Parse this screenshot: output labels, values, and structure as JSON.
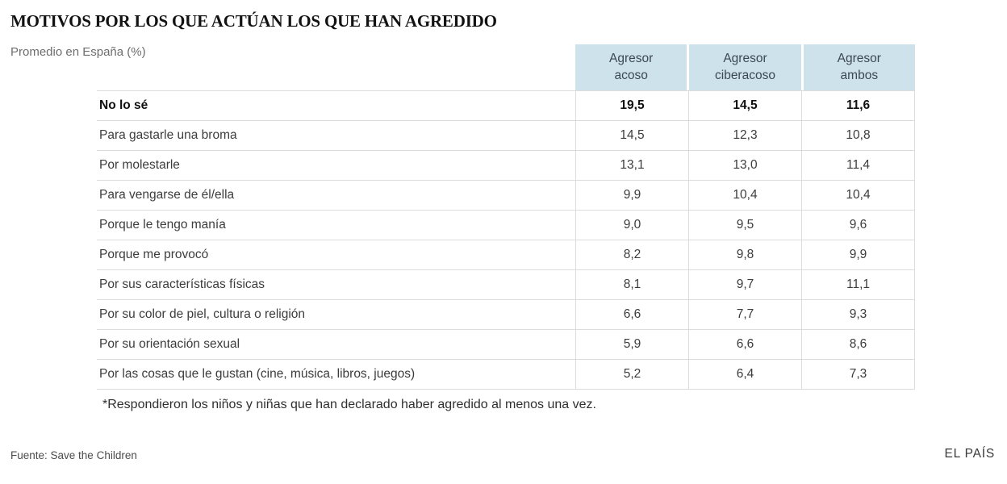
{
  "title": "MOTIVOS POR LOS QUE ACTÚAN LOS QUE HAN AGREDIDO",
  "subtitle": "Promedio en España (%)",
  "table": {
    "columns": [
      "Agresor\nacoso",
      "Agresor\nciberacoso",
      "Agresor\nambos"
    ],
    "rows": [
      {
        "label": "No lo sé",
        "values": [
          "19,5",
          "14,5",
          "11,6"
        ],
        "bold": true
      },
      {
        "label": "Para gastarle una broma",
        "values": [
          "14,5",
          "12,3",
          "10,8"
        ],
        "bold": false
      },
      {
        "label": "Por molestarle",
        "values": [
          "13,1",
          "13,0",
          "11,4"
        ],
        "bold": false
      },
      {
        "label": "Para vengarse de él/ella",
        "values": [
          "9,9",
          "10,4",
          "10,4"
        ],
        "bold": false
      },
      {
        "label": "Porque le tengo manía",
        "values": [
          "9,0",
          "9,5",
          "9,6"
        ],
        "bold": false
      },
      {
        "label": "Porque me provocó",
        "values": [
          "8,2",
          "9,8",
          "9,9"
        ],
        "bold": false
      },
      {
        "label": "Por sus características físicas",
        "values": [
          "8,1",
          "9,7",
          "11,1"
        ],
        "bold": false
      },
      {
        "label": "Por su color de piel, cultura o religión",
        "values": [
          "6,6",
          "7,7",
          "9,3"
        ],
        "bold": false
      },
      {
        "label": "Por su orientación sexual",
        "values": [
          "5,9",
          "6,6",
          "8,6"
        ],
        "bold": false
      },
      {
        "label": "Por las cosas que le gustan (cine, música, libros, juegos)",
        "values": [
          "5,2",
          "6,4",
          "7,3"
        ],
        "bold": false
      }
    ]
  },
  "footnote": "*Respondieron los niños y niñas que han declarado haber agredido al menos una vez.",
  "footer": {
    "source": "Fuente: Save the Children",
    "brand": "EL PAÍS"
  },
  "colors": {
    "header_bg": "#cde2ea",
    "grid_line": "#dcdcdc"
  },
  "chart_data": {
    "type": "table",
    "title": "MOTIVOS POR LOS QUE ACTÚAN LOS QUE HAN AGREDIDO",
    "subtitle": "Promedio en España (%)",
    "categories": [
      "No lo sé",
      "Para gastarle una broma",
      "Por molestarle",
      "Para vengarse de él/ella",
      "Porque le tengo manía",
      "Porque me provocó",
      "Por sus características físicas",
      "Por su color de piel, cultura o religión",
      "Por su orientación sexual",
      "Por las cosas que le gustan (cine, música, libros, juegos)"
    ],
    "series": [
      {
        "name": "Agresor acoso",
        "values": [
          19.5,
          14.5,
          13.1,
          9.9,
          9.0,
          8.2,
          8.1,
          6.6,
          5.9,
          5.2
        ]
      },
      {
        "name": "Agresor ciberacoso",
        "values": [
          14.5,
          12.3,
          13.0,
          10.4,
          9.5,
          9.8,
          9.7,
          7.7,
          6.6,
          6.4
        ]
      },
      {
        "name": "Agresor ambos",
        "values": [
          11.6,
          10.8,
          11.4,
          10.4,
          9.6,
          9.9,
          11.1,
          9.3,
          8.6,
          7.3
        ]
      }
    ],
    "footnote": "*Respondieron los niños y niñas que han declarado haber agredido al menos una vez.",
    "source": "Fuente: Save the Children",
    "unit": "%"
  }
}
